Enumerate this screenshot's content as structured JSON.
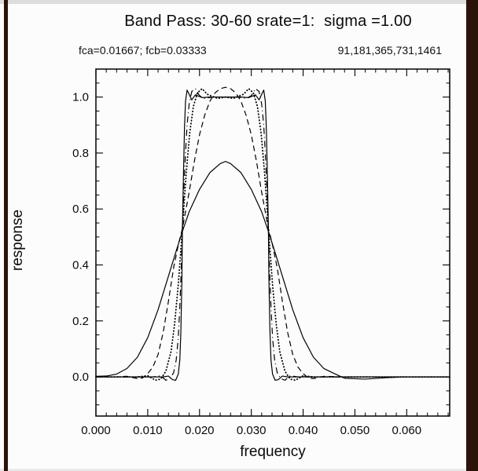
{
  "page": {
    "background": "#fcfcfc",
    "border_bar_color": "#2b1309",
    "axis_color": "#000000"
  },
  "chart_data": {
    "type": "line",
    "title": "Band Pass: 30-60 srate=1:  sigma =1.00",
    "header_left": "fca=0.01667; fcb=0.03333",
    "header_right": "91,181,365,731,1461",
    "xlabel": "frequency",
    "ylabel": "response",
    "xlim": [
      0.0,
      0.0683
    ],
    "ylim": [
      -0.14,
      1.1
    ],
    "x_ticks": [
      0.0,
      0.01,
      0.02,
      0.03,
      0.04,
      0.05,
      0.06
    ],
    "x_tick_labels": [
      "0.000",
      "0.010",
      "0.020",
      "0.030",
      "0.040",
      "0.050",
      "0.060"
    ],
    "y_ticks": [
      0.0,
      0.2,
      0.4,
      0.6,
      0.8,
      1.0
    ],
    "y_tick_labels": [
      "0.0",
      "0.2",
      "0.4",
      "0.6",
      "0.8",
      "1.0"
    ],
    "x_minor_step": 0.002,
    "y_minor_step": 0.05,
    "grid": false,
    "legend": "none",
    "band": {
      "fca": 0.01667,
      "fcb": 0.03333
    },
    "series": [
      {
        "name": "nwt=91",
        "style": "solid",
        "points": [
          [
            0.0,
            0.002
          ],
          [
            0.002,
            0.003
          ],
          [
            0.004,
            0.01
          ],
          [
            0.006,
            0.03
          ],
          [
            0.008,
            0.07
          ],
          [
            0.01,
            0.14
          ],
          [
            0.012,
            0.24
          ],
          [
            0.014,
            0.36
          ],
          [
            0.0155,
            0.45
          ],
          [
            0.0167,
            0.52
          ],
          [
            0.018,
            0.59
          ],
          [
            0.02,
            0.67
          ],
          [
            0.022,
            0.73
          ],
          [
            0.024,
            0.762
          ],
          [
            0.025,
            0.77
          ],
          [
            0.026,
            0.762
          ],
          [
            0.028,
            0.73
          ],
          [
            0.03,
            0.67
          ],
          [
            0.032,
            0.59
          ],
          [
            0.0333,
            0.52
          ],
          [
            0.0345,
            0.45
          ],
          [
            0.036,
            0.36
          ],
          [
            0.038,
            0.24
          ],
          [
            0.04,
            0.14
          ],
          [
            0.042,
            0.07
          ],
          [
            0.044,
            0.03
          ],
          [
            0.046,
            0.012
          ],
          [
            0.048,
            -0.005
          ],
          [
            0.052,
            -0.008
          ],
          [
            0.056,
            -0.003
          ],
          [
            0.06,
            0.0
          ],
          [
            0.0683,
            0.0
          ]
        ]
      },
      {
        "name": "nwt=181",
        "style": "dashed",
        "points": [
          [
            0.0,
            0.0
          ],
          [
            0.004,
            0.0
          ],
          [
            0.006,
            0.002
          ],
          [
            0.008,
            -0.006
          ],
          [
            0.009,
            -0.004
          ],
          [
            0.01,
            0.012
          ],
          [
            0.011,
            0.035
          ],
          [
            0.012,
            0.08
          ],
          [
            0.013,
            0.16
          ],
          [
            0.014,
            0.27
          ],
          [
            0.015,
            0.39
          ],
          [
            0.016,
            0.48
          ],
          [
            0.0167,
            0.53
          ],
          [
            0.018,
            0.66
          ],
          [
            0.019,
            0.77
          ],
          [
            0.02,
            0.865
          ],
          [
            0.021,
            0.935
          ],
          [
            0.022,
            0.985
          ],
          [
            0.023,
            1.015
          ],
          [
            0.024,
            1.03
          ],
          [
            0.025,
            1.035
          ],
          [
            0.026,
            1.03
          ],
          [
            0.027,
            1.015
          ],
          [
            0.028,
            0.985
          ],
          [
            0.029,
            0.935
          ],
          [
            0.03,
            0.865
          ],
          [
            0.031,
            0.77
          ],
          [
            0.032,
            0.66
          ],
          [
            0.0333,
            0.53
          ],
          [
            0.034,
            0.48
          ],
          [
            0.035,
            0.39
          ],
          [
            0.036,
            0.27
          ],
          [
            0.037,
            0.16
          ],
          [
            0.038,
            0.08
          ],
          [
            0.039,
            0.035
          ],
          [
            0.04,
            0.012
          ],
          [
            0.041,
            -0.004
          ],
          [
            0.042,
            -0.006
          ],
          [
            0.044,
            0.002
          ],
          [
            0.048,
            0.0
          ],
          [
            0.0683,
            0.0
          ]
        ]
      },
      {
        "name": "nwt=365",
        "style": "dotted",
        "points": [
          [
            0.0,
            0.0
          ],
          [
            0.008,
            0.0
          ],
          [
            0.01,
            0.004
          ],
          [
            0.0115,
            -0.012
          ],
          [
            0.0125,
            -0.008
          ],
          [
            0.0135,
            0.02
          ],
          [
            0.0145,
            0.09
          ],
          [
            0.0152,
            0.19
          ],
          [
            0.0159,
            0.33
          ],
          [
            0.0167,
            0.53
          ],
          [
            0.0174,
            0.72
          ],
          [
            0.0181,
            0.87
          ],
          [
            0.0188,
            0.965
          ],
          [
            0.0196,
            1.015
          ],
          [
            0.0205,
            1.03
          ],
          [
            0.0215,
            1.01
          ],
          [
            0.0235,
            0.995
          ],
          [
            0.025,
            1.0
          ],
          [
            0.0265,
            0.995
          ],
          [
            0.0285,
            1.01
          ],
          [
            0.0295,
            1.03
          ],
          [
            0.0304,
            1.015
          ],
          [
            0.0312,
            0.965
          ],
          [
            0.0319,
            0.87
          ],
          [
            0.0326,
            0.72
          ],
          [
            0.0333,
            0.53
          ],
          [
            0.0341,
            0.33
          ],
          [
            0.0348,
            0.19
          ],
          [
            0.0355,
            0.09
          ],
          [
            0.0365,
            0.02
          ],
          [
            0.0375,
            -0.008
          ],
          [
            0.0385,
            -0.012
          ],
          [
            0.04,
            0.004
          ],
          [
            0.042,
            0.0
          ],
          [
            0.0683,
            0.0
          ]
        ]
      },
      {
        "name": "nwt=731",
        "style": "dash-dot",
        "points": [
          [
            0.0,
            0.0
          ],
          [
            0.011,
            0.0
          ],
          [
            0.0125,
            0.004
          ],
          [
            0.0135,
            -0.012
          ],
          [
            0.0143,
            -0.006
          ],
          [
            0.015,
            0.015
          ],
          [
            0.0155,
            0.06
          ],
          [
            0.0159,
            0.14
          ],
          [
            0.0162,
            0.25
          ],
          [
            0.0165,
            0.4
          ],
          [
            0.0167,
            0.53
          ],
          [
            0.017,
            0.68
          ],
          [
            0.0173,
            0.8
          ],
          [
            0.0176,
            0.9
          ],
          [
            0.018,
            0.975
          ],
          [
            0.0185,
            1.02
          ],
          [
            0.0192,
            1.03
          ],
          [
            0.02,
            1.005
          ],
          [
            0.021,
            0.995
          ],
          [
            0.0225,
            1.0
          ],
          [
            0.025,
            1.0
          ],
          [
            0.0275,
            1.0
          ],
          [
            0.029,
            0.995
          ],
          [
            0.03,
            1.005
          ],
          [
            0.0308,
            1.03
          ],
          [
            0.0315,
            1.02
          ],
          [
            0.032,
            0.975
          ],
          [
            0.0324,
            0.9
          ],
          [
            0.0327,
            0.8
          ],
          [
            0.033,
            0.68
          ],
          [
            0.0333,
            0.53
          ],
          [
            0.0335,
            0.4
          ],
          [
            0.0338,
            0.25
          ],
          [
            0.0341,
            0.14
          ],
          [
            0.0345,
            0.06
          ],
          [
            0.035,
            0.015
          ],
          [
            0.0357,
            -0.006
          ],
          [
            0.0365,
            -0.012
          ],
          [
            0.0375,
            0.004
          ],
          [
            0.039,
            0.0
          ],
          [
            0.0683,
            0.0
          ]
        ]
      },
      {
        "name": "nwt=1461",
        "style": "solid",
        "points": [
          [
            0.0,
            0.0
          ],
          [
            0.013,
            0.0
          ],
          [
            0.014,
            0.003
          ],
          [
            0.0148,
            -0.01
          ],
          [
            0.0154,
            -0.012
          ],
          [
            0.0159,
            0.01
          ],
          [
            0.0162,
            0.06
          ],
          [
            0.0164,
            0.16
          ],
          [
            0.0166,
            0.35
          ],
          [
            0.0167,
            0.53
          ],
          [
            0.0169,
            0.72
          ],
          [
            0.0171,
            0.89
          ],
          [
            0.0173,
            0.985
          ],
          [
            0.0176,
            1.025
          ],
          [
            0.018,
            1.01
          ],
          [
            0.0185,
            0.99
          ],
          [
            0.0192,
            1.008
          ],
          [
            0.0205,
            0.998
          ],
          [
            0.022,
            1.0
          ],
          [
            0.025,
            1.0
          ],
          [
            0.028,
            1.0
          ],
          [
            0.0295,
            0.998
          ],
          [
            0.0308,
            1.008
          ],
          [
            0.0315,
            0.99
          ],
          [
            0.032,
            1.01
          ],
          [
            0.0324,
            1.025
          ],
          [
            0.0327,
            0.985
          ],
          [
            0.0329,
            0.89
          ],
          [
            0.0331,
            0.72
          ],
          [
            0.0333,
            0.53
          ],
          [
            0.0334,
            0.35
          ],
          [
            0.0336,
            0.16
          ],
          [
            0.0338,
            0.06
          ],
          [
            0.0341,
            0.01
          ],
          [
            0.0346,
            -0.012
          ],
          [
            0.0352,
            -0.01
          ],
          [
            0.036,
            0.003
          ],
          [
            0.037,
            0.0
          ],
          [
            0.0683,
            0.0
          ]
        ]
      }
    ]
  }
}
